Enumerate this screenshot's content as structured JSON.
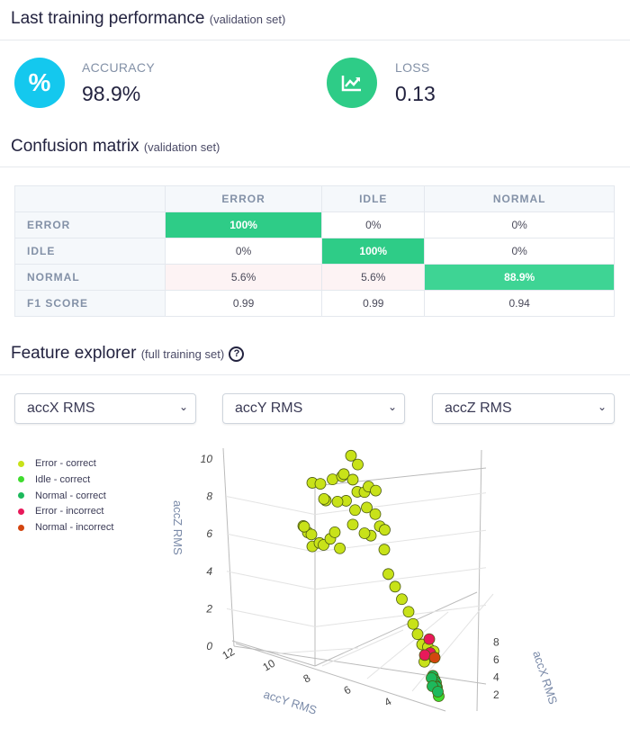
{
  "performance": {
    "title": "Last training performance",
    "subtitle": "(validation set)",
    "accuracy": {
      "label": "ACCURACY",
      "value": "98.9%",
      "icon": "percent-icon",
      "color": "#14c8ee"
    },
    "loss": {
      "label": "LOSS",
      "value": "0.13",
      "icon": "chart-line-icon",
      "color": "#2ecc87"
    }
  },
  "confusion": {
    "title": "Confusion matrix",
    "subtitle": "(validation set)",
    "columns": [
      "ERROR",
      "IDLE",
      "NORMAL"
    ],
    "rows": [
      {
        "label": "ERROR",
        "cells": [
          "100%",
          "0%",
          "0%"
        ]
      },
      {
        "label": "IDLE",
        "cells": [
          "0%",
          "100%",
          "0%"
        ]
      },
      {
        "label": "NORMAL",
        "cells": [
          "5.6%",
          "5.6%",
          "88.9%"
        ]
      }
    ],
    "f1": {
      "label": "F1 SCORE",
      "cells": [
        "0.99",
        "0.99",
        "0.94"
      ]
    }
  },
  "explorer": {
    "title": "Feature explorer",
    "subtitle": "(full training set)",
    "help_icon": "question-circle-icon",
    "selects": [
      "accX RMS",
      "accY RMS",
      "accZ RMS"
    ]
  },
  "chart_data": {
    "type": "scatter3d",
    "axes": {
      "x": {
        "label": "accX RMS",
        "ticks": [
          "2",
          "4",
          "6",
          "8"
        ]
      },
      "y": {
        "label": "accY RMS",
        "ticks": [
          "12",
          "10",
          "8",
          "6",
          "4"
        ]
      },
      "z": {
        "label": "accZ RMS",
        "ticks": [
          "0",
          "2",
          "4",
          "6",
          "8",
          "10"
        ]
      }
    },
    "legend_position": "left",
    "series": [
      {
        "name": "Error - correct",
        "color": "#c8e219",
        "points": [
          [
            5,
            9.2,
            5.8
          ],
          [
            5,
            9,
            5.5
          ],
          [
            5.5,
            8.9,
            5.2
          ],
          [
            4.5,
            9.1,
            6
          ],
          [
            5,
            8.8,
            4.8
          ],
          [
            6,
            8.6,
            4.6
          ],
          [
            5,
            8.3,
            5.0
          ],
          [
            5,
            8,
            5.4
          ],
          [
            5.2,
            7.6,
            4.9
          ],
          [
            5,
            7.8,
            5.8
          ],
          [
            5,
            8.8,
            8.2
          ],
          [
            5.5,
            8.5,
            8.0
          ],
          [
            5,
            8.2,
            7.4
          ],
          [
            6,
            8.4,
            7.0
          ],
          [
            5,
            7.9,
            8.6
          ],
          [
            6,
            7.6,
            8.4
          ],
          [
            5,
            7.4,
            9.0
          ],
          [
            6,
            7.2,
            9.6
          ],
          [
            5,
            7,
            8.8
          ],
          [
            6,
            6.9,
            9.2
          ],
          [
            5,
            6.8,
            8.2
          ],
          [
            6,
            6.6,
            7.8
          ],
          [
            5,
            6.9,
            7.2
          ],
          [
            6,
            6.5,
            7.0
          ],
          [
            5,
            6.3,
            8.6
          ],
          [
            6,
            6.1,
            8.0
          ],
          [
            5,
            6.0,
            7.2
          ],
          [
            5,
            5.8,
            6.6
          ],
          [
            6,
            5.7,
            6.0
          ],
          [
            5,
            5.6,
            5.4
          ],
          [
            5,
            6.2,
            6.0
          ],
          [
            6,
            6.6,
            5.6
          ],
          [
            5,
            7,
            6.4
          ],
          [
            5,
            7.3,
            7.6
          ],
          [
            6,
            7.8,
            7.0
          ],
          [
            4,
            5.3,
            4.6
          ],
          [
            4,
            5.0,
            4.0
          ],
          [
            4,
            4.7,
            3.4
          ],
          [
            4,
            4.4,
            2.8
          ],
          [
            4,
            4.2,
            2.2
          ],
          [
            4,
            4.0,
            1.7
          ],
          [
            4,
            3.8,
            1.2
          ],
          [
            4.5,
            3.6,
            0.9
          ],
          [
            4,
            3.5,
            0.6
          ],
          [
            5,
            3.4,
            0.5
          ],
          [
            4,
            3.7,
            0.3
          ]
        ]
      },
      {
        "name": "Idle - correct",
        "color": "#3fdc2e",
        "points": [
          [
            1,
            2.7,
            0.0
          ]
        ]
      },
      {
        "name": "Normal - correct",
        "color": "#1db95c",
        "points": [
          [
            3,
            3.2,
            0.1
          ],
          [
            2.8,
            3.1,
            0.0
          ],
          [
            2.5,
            3.0,
            0.0
          ],
          [
            2.2,
            3.0,
            0.0
          ],
          [
            2,
            2.9,
            0.0
          ],
          [
            1.8,
            2.9,
            0.1
          ],
          [
            2.5,
            3.2,
            0.2
          ],
          [
            2,
            3.1,
            0.0
          ],
          [
            1.5,
            2.8,
            0.0
          ]
        ]
      },
      {
        "name": "Error - incorrect",
        "color": "#e8195a",
        "points": [
          [
            5,
            3.6,
            1.1
          ],
          [
            4.5,
            3.5,
            0.6
          ],
          [
            5,
            3.8,
            0.2
          ]
        ]
      },
      {
        "name": "Normal - incorrect",
        "color": "#d3450f",
        "points": [
          [
            4.5,
            3.3,
            0.4
          ]
        ]
      }
    ]
  }
}
